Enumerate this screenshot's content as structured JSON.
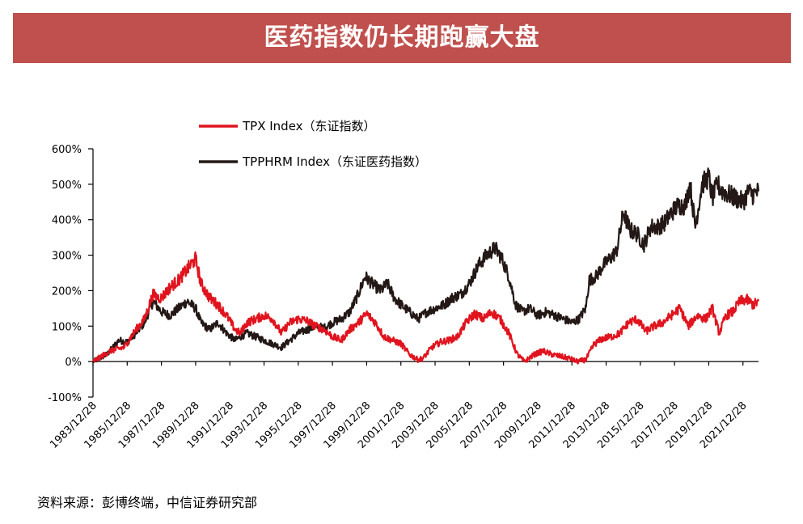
{
  "page": {
    "title": "医药指数仍长期跑赢大盘",
    "source_note": "资料来源：彭博终端，中信证券研究部"
  },
  "colors": {
    "title_bg": "#c0504d",
    "tpx": "#e0141e",
    "tpphrm": "#231815"
  },
  "chart_data": {
    "type": "line",
    "title": "医药指数仍长期跑赢大盘",
    "xlabel": "",
    "ylabel": "",
    "x_range": [
      1983.99,
      2022.9
    ],
    "ylim": [
      -100,
      600
    ],
    "yticks": [
      -100,
      0,
      100,
      200,
      300,
      400,
      500,
      600
    ],
    "ytick_labels": [
      "-100%",
      "0%",
      "100%",
      "200%",
      "300%",
      "400%",
      "500%",
      "600%"
    ],
    "xtick_labels": [
      "1983/12/28",
      "1985/12/28",
      "1987/12/28",
      "1989/12/28",
      "1991/12/28",
      "1993/12/28",
      "1995/12/28",
      "1997/12/28",
      "1999/12/28",
      "2001/12/28",
      "2003/12/28",
      "2005/12/28",
      "2007/12/28",
      "2009/12/28",
      "2011/12/28",
      "2013/12/28",
      "2015/12/28",
      "2017/12/28",
      "2019/12/28",
      "2021/12/28"
    ],
    "legend_position": "top-left",
    "series": [
      {
        "name": "TPX Index（东证指数）",
        "unit": "%",
        "x": [
          1984.0,
          1985.0,
          1985.8,
          1986.5,
          1987.0,
          1987.5,
          1987.8,
          1988.0,
          1988.5,
          1989.0,
          1989.5,
          1989.99,
          1990.3,
          1990.8,
          1991.3,
          1991.8,
          1992.3,
          1992.6,
          1993.0,
          1993.5,
          1994.0,
          1994.5,
          1995.0,
          1995.5,
          1996.0,
          1996.5,
          1997.0,
          1997.5,
          1998.0,
          1998.5,
          1999.0,
          1999.5,
          2000.0,
          2000.5,
          2001.0,
          2001.5,
          2002.0,
          2002.5,
          2003.0,
          2003.3,
          2003.8,
          2004.3,
          2004.8,
          2005.3,
          2005.8,
          2006.3,
          2006.8,
          2007.3,
          2007.8,
          2008.3,
          2008.8,
          2009.2,
          2009.8,
          2010.3,
          2010.8,
          2011.3,
          2011.8,
          2012.3,
          2012.8,
          2013.3,
          2013.8,
          2014.3,
          2014.8,
          2015.3,
          2015.8,
          2016.3,
          2016.8,
          2017.3,
          2017.8,
          2018.3,
          2018.8,
          2019.3,
          2019.8,
          2020.2,
          2020.6,
          2021.0,
          2021.4,
          2021.8,
          2022.2,
          2022.6,
          2022.9
        ],
        "values": [
          0,
          30,
          40,
          90,
          120,
          190,
          180,
          180,
          210,
          230,
          260,
          290,
          220,
          180,
          160,
          130,
          90,
          80,
          110,
          120,
          130,
          120,
          80,
          110,
          120,
          115,
          100,
          90,
          70,
          60,
          90,
          110,
          135,
          110,
          70,
          60,
          50,
          20,
          5,
          10,
          40,
          55,
          60,
          70,
          110,
          135,
          120,
          140,
          120,
          80,
          20,
          0,
          20,
          30,
          20,
          15,
          10,
          0,
          5,
          50,
          65,
          70,
          80,
          110,
          120,
          85,
          100,
          110,
          130,
          150,
          100,
          130,
          120,
          150,
          80,
          130,
          140,
          170,
          175,
          160,
          170
        ]
      },
      {
        "name": "TPPHRM Index（东证医药指数）",
        "unit": "%",
        "x": [
          1984.0,
          1984.8,
          1985.5,
          1986.0,
          1986.5,
          1987.0,
          1987.5,
          1988.0,
          1988.5,
          1989.0,
          1989.5,
          1989.99,
          1990.3,
          1990.8,
          1991.3,
          1991.8,
          1992.3,
          1992.6,
          1993.0,
          1993.5,
          1994.0,
          1994.5,
          1995.0,
          1995.5,
          1996.0,
          1996.5,
          1997.0,
          1997.5,
          1998.0,
          1998.5,
          1999.0,
          1999.5,
          1999.9,
          2000.3,
          2000.8,
          2001.2,
          2001.6,
          2002.0,
          2002.5,
          2003.0,
          2003.5,
          2004.0,
          2004.5,
          2005.0,
          2005.5,
          2006.0,
          2006.5,
          2007.0,
          2007.5,
          2007.9,
          2008.3,
          2008.7,
          2009.1,
          2009.5,
          2010.0,
          2010.5,
          2011.0,
          2011.5,
          2012.0,
          2012.4,
          2012.8,
          2013.0,
          2013.4,
          2013.8,
          2014.2,
          2014.6,
          2015.0,
          2015.4,
          2015.8,
          2016.2,
          2016.6,
          2017.0,
          2017.4,
          2017.8,
          2018.2,
          2018.6,
          2018.9,
          2019.2,
          2019.6,
          2019.99,
          2020.2,
          2020.5,
          2020.8,
          2021.2,
          2021.6,
          2022.0,
          2022.3,
          2022.6,
          2022.9
        ],
        "values": [
          0,
          20,
          60,
          55,
          80,
          110,
          170,
          140,
          130,
          150,
          170,
          150,
          110,
          90,
          110,
          80,
          60,
          70,
          80,
          70,
          60,
          50,
          40,
          60,
          80,
          90,
          100,
          95,
          110,
          120,
          140,
          190,
          240,
          220,
          200,
          220,
          180,
          160,
          140,
          120,
          140,
          150,
          160,
          180,
          190,
          220,
          270,
          300,
          320,
          290,
          240,
          160,
          140,
          150,
          130,
          140,
          130,
          120,
          110,
          120,
          150,
          230,
          240,
          270,
          290,
          310,
          420,
          370,
          360,
          330,
          380,
          380,
          390,
          420,
          440,
          440,
          500,
          380,
          500,
          520,
          460,
          500,
          480,
          470,
          460,
          450,
          480,
          470,
          480
        ]
      }
    ]
  }
}
